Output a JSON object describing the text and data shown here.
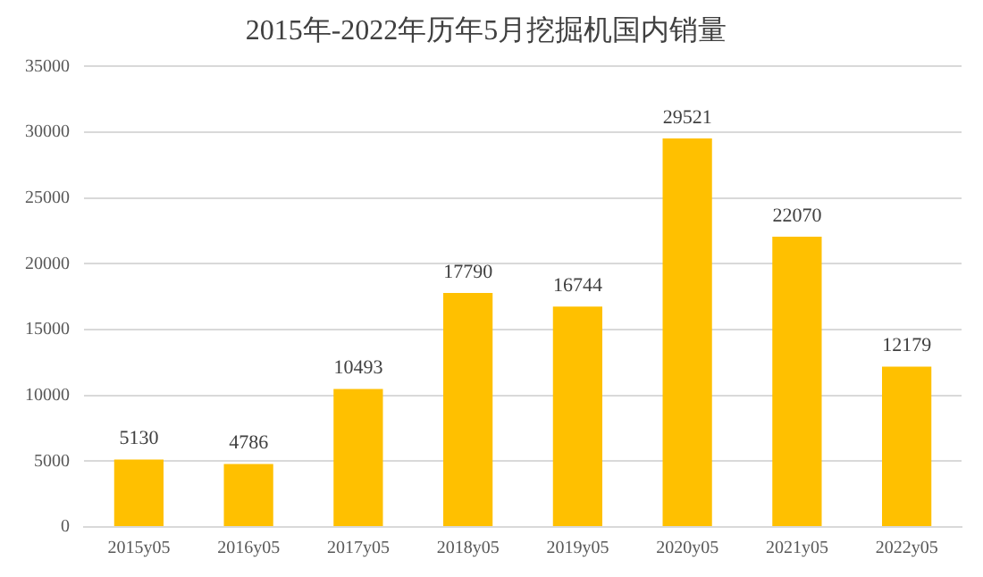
{
  "chart_data": {
    "type": "bar",
    "title": "2015年-2022年历年5月挖掘机国内销量",
    "categories": [
      "2015y05",
      "2016y05",
      "2017y05",
      "2018y05",
      "2019y05",
      "2020y05",
      "2021y05",
      "2022y05"
    ],
    "values": [
      5130,
      4786,
      10493,
      17790,
      16744,
      29521,
      22070,
      12179
    ],
    "color": "#ffc000",
    "ylim": [
      0,
      35000
    ],
    "yticks": [
      0,
      5000,
      10000,
      15000,
      20000,
      25000,
      30000,
      35000
    ],
    "grid": "y",
    "data_labels": true
  }
}
